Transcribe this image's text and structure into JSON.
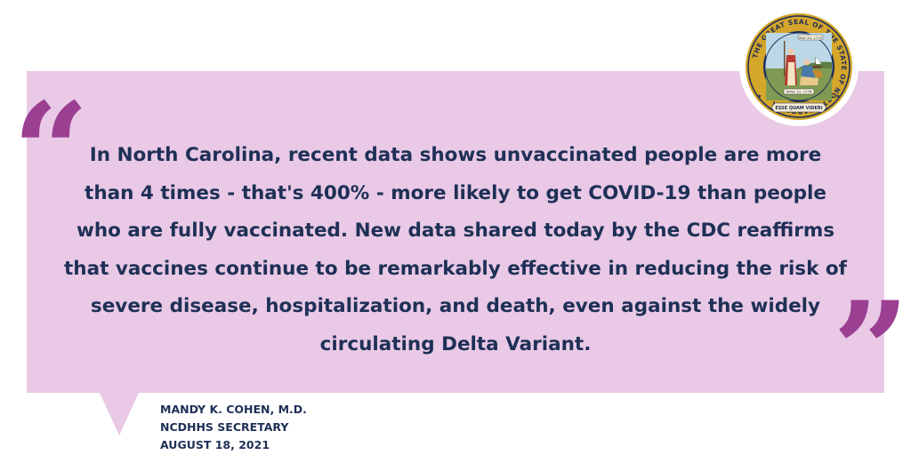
{
  "quote": {
    "open_mark": "“",
    "close_mark": "”",
    "text": "In North Carolina, recent data shows unvaccinated people are more than 4 times - that's 400% - more likely to get COVID-19 than people who are fully vaccinated. New data shared today by the CDC reaffirms that vaccines continue to be remarkably effective in reducing the risk of severe disease, hospitalization, and death, even against the widely circulating Delta Variant."
  },
  "attribution": {
    "name": "MANDY K. COHEN, M.D.",
    "role": "NCDHHS SECRETARY",
    "date": "AUGUST 18, 2021"
  },
  "seal": {
    "icon": "north-carolina-state-seal-icon",
    "ring_text": "THE GREAT SEAL OF THE STATE OF NORTH CAROLINA",
    "date_top": "MAY 20, 1775",
    "date_bottom": "APRIL 12, 1776",
    "motto": "ESSE QUAM VIDERI"
  },
  "colors": {
    "bubble": "#e9c9e6",
    "quote_marks": "#9b3f92",
    "text": "#1e3056",
    "seal_gold": "#d4a62a",
    "seal_navy": "#1c2c5b"
  }
}
